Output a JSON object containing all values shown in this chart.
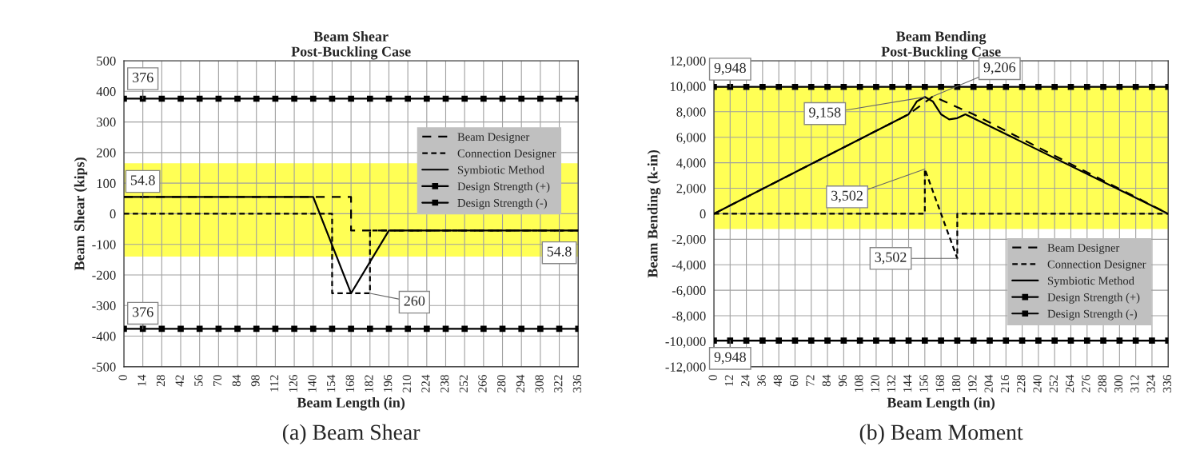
{
  "chart_data": [
    {
      "type": "line",
      "title": "Beam Shear\nPost-Buckling Case",
      "xlabel": "Beam Length (in)",
      "ylabel": "Beam Shear (kips)",
      "xlim": [
        0,
        336
      ],
      "xticks": [
        0,
        14,
        28,
        42,
        56,
        70,
        84,
        98,
        112,
        126,
        140,
        154,
        168,
        182,
        196,
        210,
        224,
        238,
        252,
        266,
        280,
        294,
        308,
        322,
        336
      ],
      "ylim": [
        -500,
        500
      ],
      "yticks": [
        -500,
        -400,
        -300,
        -200,
        -100,
        0,
        100,
        200,
        300,
        400,
        500
      ],
      "grid": true,
      "legend": "right",
      "bands": [
        {
          "axis": "y",
          "from": -140,
          "to": 165,
          "color": "#ffff55"
        }
      ],
      "series": [
        {
          "name": "Beam Designer",
          "color": "#000000",
          "line_style": "dashed",
          "x": [
            0,
            168,
            168,
            336
          ],
          "values": [
            54.8,
            54.8,
            -54.8,
            -54.8
          ]
        },
        {
          "name": "Connection Designer",
          "color": "#000000",
          "line_style": "dotted",
          "x": [
            0,
            154,
            154,
            182,
            182,
            336
          ],
          "values": [
            0,
            0,
            -260,
            -260,
            -54.8,
            -54.8
          ]
        },
        {
          "name": "Symbiotic Method",
          "color": "#000000",
          "line_style": "solid",
          "x": [
            0,
            140,
            168,
            196,
            336
          ],
          "values": [
            54.8,
            54.8,
            -260,
            -54.8,
            -54.8
          ]
        },
        {
          "name": "Design Strength (+)",
          "color": "#000000",
          "line_style": "solid",
          "marker": "square",
          "x": [
            0,
            14,
            28,
            42,
            56,
            70,
            84,
            98,
            112,
            126,
            140,
            154,
            168,
            182,
            196,
            210,
            224,
            238,
            252,
            266,
            280,
            294,
            308,
            322,
            336
          ],
          "values": [
            376,
            376,
            376,
            376,
            376,
            376,
            376,
            376,
            376,
            376,
            376,
            376,
            376,
            376,
            376,
            376,
            376,
            376,
            376,
            376,
            376,
            376,
            376,
            376,
            376
          ]
        },
        {
          "name": "Design Strength (-)",
          "color": "#000000",
          "line_style": "solid",
          "marker": "square",
          "x": [
            0,
            14,
            28,
            42,
            56,
            70,
            84,
            98,
            112,
            126,
            140,
            154,
            168,
            182,
            196,
            210,
            224,
            238,
            252,
            266,
            280,
            294,
            308,
            322,
            336
          ],
          "values": [
            -376,
            -376,
            -376,
            -376,
            -376,
            -376,
            -376,
            -376,
            -376,
            -376,
            -376,
            -376,
            -376,
            -376,
            -376,
            -376,
            -376,
            -376,
            -376,
            -376,
            -376,
            -376,
            -376,
            -376,
            -376
          ]
        }
      ],
      "annotations": [
        {
          "text": "376",
          "x": 14,
          "y": 376
        },
        {
          "text": "54.8",
          "x": 14,
          "y": 54.8
        },
        {
          "text": "260",
          "x": 182,
          "y": -260
        },
        {
          "text": "54.8",
          "x": 322,
          "y": -54.8
        },
        {
          "text": "376",
          "x": 14,
          "y": -376
        },
        "(a) Beam Shear"
      ]
    },
    {
      "type": "line",
      "title": "Beam Bending\nPost-Buckling Case",
      "xlabel": "Beam Length (in)",
      "ylabel": "Beam Bending (k-in)",
      "xlim": [
        0,
        336
      ],
      "xticks": [
        0,
        12,
        24,
        36,
        48,
        60,
        72,
        84,
        96,
        108,
        120,
        132,
        144,
        156,
        168,
        180,
        192,
        204,
        216,
        228,
        240,
        252,
        264,
        276,
        288,
        300,
        312,
        324,
        336
      ],
      "ylim": [
        -12000,
        12000
      ],
      "yticks": [
        {
          "value": -12000,
          "label": "-12,000"
        },
        {
          "value": -10000,
          "label": "-10,000"
        },
        {
          "value": -8000,
          "label": "-8,000"
        },
        {
          "value": -6000,
          "label": "-6,000"
        },
        {
          "value": -4000,
          "label": "-4,000"
        },
        {
          "value": -2000,
          "label": "-2,000"
        },
        0,
        {
          "value": 2000,
          "label": "2,000"
        },
        {
          "value": 4000,
          "label": "4,000"
        },
        {
          "value": 6000,
          "label": "6,000"
        },
        {
          "value": 8000,
          "label": "8,000"
        },
        {
          "value": 10000,
          "label": "10,000"
        },
        {
          "value": 12000,
          "label": "12,000"
        }
      ],
      "grid": true,
      "legend": "bottom right",
      "bands": [
        {
          "axis": "y",
          "from": -1200,
          "to": 10000,
          "color": "#ffff55"
        }
      ],
      "series": [
        {
          "name": "Beam Designer",
          "color": "#000000",
          "line_style": "dashed",
          "x": [
            0,
            144,
            162,
            192,
            336
          ],
          "values": [
            0,
            7800,
            9206,
            7800,
            0
          ]
        },
        {
          "name": "Connection Designer",
          "color": "#000000",
          "line_style": "dotted",
          "x": [
            0,
            156,
            156,
            180,
            180,
            336
          ],
          "values": [
            0,
            0,
            3502,
            -3502,
            0,
            0
          ]
        },
        {
          "name": "Symbiotic Method",
          "color": "#000000",
          "line_style": "solid",
          "x": [
            0,
            144,
            150,
            156,
            162,
            168,
            174,
            180,
            186,
            336
          ],
          "values": [
            0,
            7800,
            8800,
            9158,
            8800,
            7800,
            7400,
            7500,
            7800,
            0
          ]
        },
        {
          "name": "Design Strength (+)",
          "color": "#000000",
          "line_style": "solid",
          "marker": "square",
          "x": [
            0,
            12,
            24,
            36,
            48,
            60,
            72,
            84,
            96,
            108,
            120,
            132,
            144,
            156,
            168,
            180,
            192,
            204,
            216,
            228,
            240,
            252,
            264,
            276,
            288,
            300,
            312,
            324,
            336
          ],
          "values": [
            9948,
            9948,
            9948,
            9948,
            9948,
            9948,
            9948,
            9948,
            9948,
            9948,
            9948,
            9948,
            9948,
            9948,
            9948,
            9948,
            9948,
            9948,
            9948,
            9948,
            9948,
            9948,
            9948,
            9948,
            9948,
            9948,
            9948,
            9948,
            9948
          ]
        },
        {
          "name": "Design Strength (-)",
          "color": "#000000",
          "line_style": "solid",
          "marker": "square",
          "x": [
            0,
            12,
            24,
            36,
            48,
            60,
            72,
            84,
            96,
            108,
            120,
            132,
            144,
            156,
            168,
            180,
            192,
            204,
            216,
            228,
            240,
            252,
            264,
            276,
            288,
            300,
            312,
            324,
            336
          ],
          "values": [
            -9948,
            -9948,
            -9948,
            -9948,
            -9948,
            -9948,
            -9948,
            -9948,
            -9948,
            -9948,
            -9948,
            -9948,
            -9948,
            -9948,
            -9948,
            -9948,
            -9948,
            -9948,
            -9948,
            -9948,
            -9948,
            -9948,
            -9948,
            -9948,
            -9948,
            -9948,
            -9948,
            -9948,
            -9948
          ]
        }
      ],
      "annotations": [
        {
          "text": "9,948",
          "x": 12,
          "y": 9948
        },
        {
          "text": "9,206",
          "x": 162,
          "y": 9206
        },
        {
          "text": "9,158",
          "x": 156,
          "y": 9158
        },
        {
          "text": "3,502",
          "x": 156,
          "y": 3502
        },
        {
          "text": "3,502",
          "x": 180,
          "y": -3502
        },
        {
          "text": "9,948",
          "x": 12,
          "y": -9948
        },
        "(b) Beam Moment"
      ]
    }
  ]
}
